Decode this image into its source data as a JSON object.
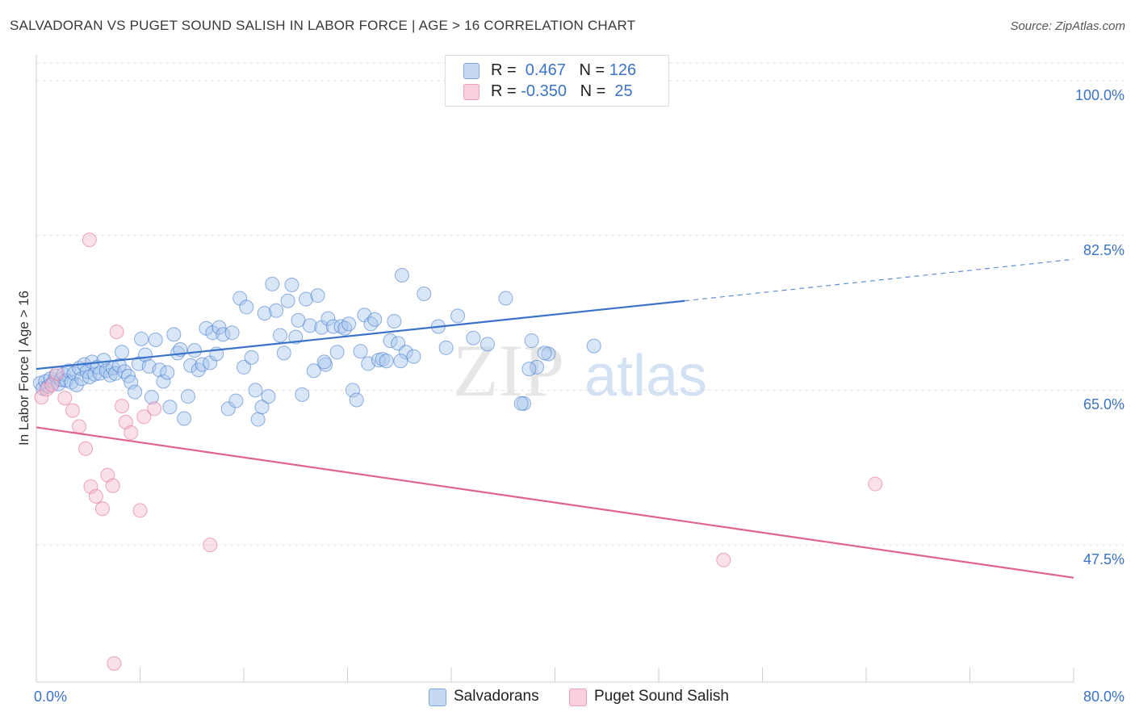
{
  "title": "SALVADORAN VS PUGET SOUND SALISH IN LABOR FORCE | AGE > 16 CORRELATION CHART",
  "source": "Source: ZipAtlas.com",
  "watermark": {
    "zip": "ZIP",
    "atlas": "atlas"
  },
  "legend": {
    "rows": [
      {
        "r_label": "R = ",
        "r_value": " 0.467",
        "n_label": "   N = ",
        "n_value": "126",
        "color": "#9cbfe8"
      },
      {
        "r_label": "R = ",
        "r_value": "-0.350",
        "n_label": "   N = ",
        "n_value": " 25",
        "color": "#f4b6c8"
      }
    ]
  },
  "bottom_legend": [
    {
      "label": "Salvadorans",
      "color": "#9cbfe8"
    },
    {
      "label": "Puget Sound Salish",
      "color": "#f4b6c8"
    }
  ],
  "chart_data": {
    "type": "scatter",
    "title": "SALVADORAN VS PUGET SOUND SALISH IN LABOR FORCE | AGE > 16 CORRELATION CHART",
    "xlabel": "",
    "ylabel": "In Labor Force | Age > 16",
    "xlim": [
      0,
      80
    ],
    "ylim": [
      32,
      102
    ],
    "x_tick_labels": [
      "0.0%",
      "80.0%"
    ],
    "y_ticks": [
      47.5,
      65.0,
      82.5,
      100.0
    ],
    "y_tick_labels": [
      "47.5%",
      "65.0%",
      "82.5%",
      "100.0%"
    ],
    "grid": "horizontal dashed",
    "legend_position": "top-center",
    "series": [
      {
        "name": "Salvadorans",
        "color": "#3a73c8",
        "fill": "#a9c8ee",
        "trend": {
          "x": [
            0,
            50
          ],
          "y": [
            67.4,
            75.1
          ],
          "dashed_to": [
            80,
            79.8
          ]
        },
        "points": [
          [
            0.3,
            65.8
          ],
          [
            0.5,
            65.2
          ],
          [
            0.7,
            66.0
          ],
          [
            0.9,
            65.4
          ],
          [
            1.1,
            66.3
          ],
          [
            1.3,
            65.9
          ],
          [
            1.5,
            66.6
          ],
          [
            1.7,
            65.7
          ],
          [
            1.9,
            66.2
          ],
          [
            2.1,
            66.8
          ],
          [
            2.3,
            66.1
          ],
          [
            2.5,
            67.2
          ],
          [
            2.7,
            65.9
          ],
          [
            2.9,
            66.9
          ],
          [
            3.1,
            65.6
          ],
          [
            3.3,
            67.5
          ],
          [
            3.5,
            66.3
          ],
          [
            3.7,
            67.9
          ],
          [
            3.9,
            67.1
          ],
          [
            4.1,
            66.5
          ],
          [
            4.3,
            68.2
          ],
          [
            4.5,
            66.8
          ],
          [
            4.7,
            67.6
          ],
          [
            4.9,
            66.9
          ],
          [
            5.2,
            68.4
          ],
          [
            5.4,
            67.2
          ],
          [
            5.7,
            66.7
          ],
          [
            5.9,
            67.5
          ],
          [
            6.1,
            66.9
          ],
          [
            6.4,
            67.8
          ],
          [
            6.6,
            69.3
          ],
          [
            6.8,
            67.1
          ],
          [
            7.1,
            66.6
          ],
          [
            7.3,
            65.9
          ],
          [
            7.6,
            64.8
          ],
          [
            7.9,
            68.0
          ],
          [
            8.1,
            70.8
          ],
          [
            8.4,
            69.0
          ],
          [
            8.7,
            67.7
          ],
          [
            8.9,
            64.2
          ],
          [
            9.2,
            70.7
          ],
          [
            9.5,
            67.3
          ],
          [
            9.8,
            66.0
          ],
          [
            10.1,
            67.0
          ],
          [
            10.3,
            63.1
          ],
          [
            10.6,
            71.3
          ],
          [
            10.9,
            69.2
          ],
          [
            11.1,
            69.6
          ],
          [
            11.4,
            61.8
          ],
          [
            11.7,
            64.3
          ],
          [
            11.9,
            67.8
          ],
          [
            12.2,
            69.5
          ],
          [
            12.5,
            67.3
          ],
          [
            12.8,
            67.9
          ],
          [
            13.1,
            72.0
          ],
          [
            13.4,
            68.1
          ],
          [
            13.6,
            71.5
          ],
          [
            13.9,
            69.1
          ],
          [
            14.1,
            72.1
          ],
          [
            14.4,
            71.3
          ],
          [
            14.8,
            62.9
          ],
          [
            15.1,
            71.5
          ],
          [
            15.4,
            63.8
          ],
          [
            15.7,
            75.4
          ],
          [
            16.0,
            67.6
          ],
          [
            16.2,
            74.4
          ],
          [
            16.6,
            68.7
          ],
          [
            16.9,
            65.0
          ],
          [
            17.1,
            61.7
          ],
          [
            17.4,
            63.1
          ],
          [
            17.6,
            73.7
          ],
          [
            17.9,
            64.3
          ],
          [
            18.2,
            77.0
          ],
          [
            18.5,
            74.0
          ],
          [
            18.8,
            71.2
          ],
          [
            19.1,
            69.2
          ],
          [
            19.4,
            75.1
          ],
          [
            19.7,
            76.9
          ],
          [
            20.0,
            71.0
          ],
          [
            20.2,
            72.9
          ],
          [
            20.5,
            64.5
          ],
          [
            20.8,
            75.3
          ],
          [
            21.1,
            72.3
          ],
          [
            21.4,
            67.2
          ],
          [
            21.7,
            75.7
          ],
          [
            22.0,
            72.1
          ],
          [
            22.3,
            67.9
          ],
          [
            22.5,
            73.1
          ],
          [
            22.9,
            72.2
          ],
          [
            23.2,
            69.3
          ],
          [
            23.5,
            72.2
          ],
          [
            23.8,
            72.0
          ],
          [
            24.1,
            72.5
          ],
          [
            24.4,
            65.0
          ],
          [
            24.7,
            63.9
          ],
          [
            25.0,
            69.4
          ],
          [
            25.3,
            73.5
          ],
          [
            25.6,
            68.0
          ],
          [
            25.8,
            72.5
          ],
          [
            26.1,
            73.0
          ],
          [
            26.4,
            68.4
          ],
          [
            26.7,
            68.5
          ],
          [
            27.0,
            68.3
          ],
          [
            27.3,
            70.6
          ],
          [
            27.6,
            72.8
          ],
          [
            27.9,
            70.3
          ],
          [
            28.2,
            78.0
          ],
          [
            28.5,
            69.3
          ],
          [
            29.1,
            68.8
          ],
          [
            29.9,
            75.9
          ],
          [
            31.0,
            72.2
          ],
          [
            31.6,
            69.8
          ],
          [
            32.5,
            73.4
          ],
          [
            33.7,
            70.9
          ],
          [
            36.2,
            75.4
          ],
          [
            37.6,
            63.5
          ],
          [
            38.2,
            70.6
          ],
          [
            38.6,
            67.6
          ],
          [
            39.5,
            69.1
          ],
          [
            43.0,
            70.0
          ],
          [
            28.1,
            68.3
          ],
          [
            34.8,
            70.2
          ],
          [
            39.2,
            69.2
          ],
          [
            38.0,
            67.4
          ],
          [
            37.4,
            63.5
          ],
          [
            22.2,
            68.2
          ]
        ]
      },
      {
        "name": "Puget Sound Salish",
        "color": "#e0628e",
        "fill": "#f5bccd",
        "trend": {
          "x": [
            0,
            80
          ],
          "y": [
            60.8,
            43.8
          ]
        },
        "points": [
          [
            0.4,
            64.2
          ],
          [
            0.8,
            65.1
          ],
          [
            1.2,
            65.6
          ],
          [
            1.6,
            66.9
          ],
          [
            2.2,
            64.1
          ],
          [
            2.8,
            62.7
          ],
          [
            3.3,
            60.9
          ],
          [
            3.8,
            58.4
          ],
          [
            4.2,
            54.1
          ],
          [
            4.6,
            53.0
          ],
          [
            5.1,
            51.6
          ],
          [
            5.5,
            55.4
          ],
          [
            5.9,
            54.2
          ],
          [
            6.2,
            71.6
          ],
          [
            6.6,
            63.2
          ],
          [
            6.9,
            61.4
          ],
          [
            7.3,
            60.2
          ],
          [
            8.0,
            51.4
          ],
          [
            8.3,
            62.0
          ],
          [
            9.1,
            62.9
          ],
          [
            13.4,
            47.5
          ],
          [
            4.1,
            82.0
          ],
          [
            6.0,
            34.1
          ],
          [
            53.0,
            45.8
          ],
          [
            64.7,
            54.4
          ]
        ]
      }
    ]
  }
}
